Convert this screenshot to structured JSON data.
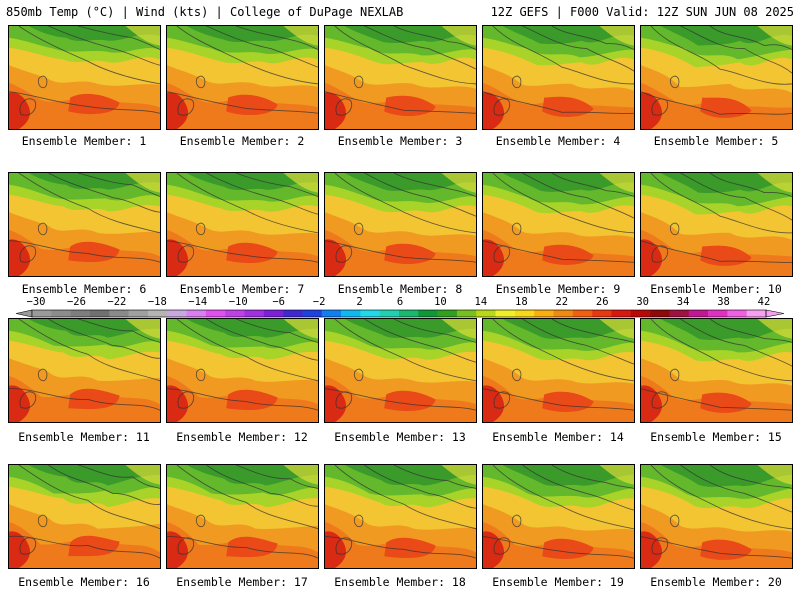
{
  "header": {
    "left": "850mb Temp (°C) | Wind (kts) | College of DuPage NEXLAB",
    "right": "12Z GEFS | F000 Valid: 12Z SUN JUN 08 2025"
  },
  "members": [
    "Ensemble Member: 1",
    "Ensemble Member: 2",
    "Ensemble Member: 3",
    "Ensemble Member: 4",
    "Ensemble Member: 5",
    "Ensemble Member: 6",
    "Ensemble Member: 7",
    "Ensemble Member: 8",
    "Ensemble Member: 9",
    "Ensemble Member: 10",
    "Ensemble Member: 11",
    "Ensemble Member: 12",
    "Ensemble Member: 13",
    "Ensemble Member: 14",
    "Ensemble Member: 15",
    "Ensemble Member: 16",
    "Ensemble Member: 17",
    "Ensemble Member: 18",
    "Ensemble Member: 19",
    "Ensemble Member: 20"
  ],
  "colorbar": {
    "labels": [
      "−30",
      "−26",
      "−22",
      "−18",
      "−14",
      "−10",
      "−6",
      "−2",
      "2",
      "6",
      "10",
      "14",
      "18",
      "22",
      "26",
      "30",
      "34",
      "38",
      "42"
    ],
    "colors": [
      "#9a9a9a",
      "#8c8c8c",
      "#7e7e7e",
      "#707070",
      "#8a8a8a",
      "#a0a0a0",
      "#b4b4b4",
      "#c8a8e0",
      "#d880f0",
      "#e050f0",
      "#c040e8",
      "#a030e0",
      "#7a20d8",
      "#4028d0",
      "#2040e0",
      "#1080f0",
      "#10b8f0",
      "#20d8e8",
      "#20d0b0",
      "#18b870",
      "#109838",
      "#30a020",
      "#78c020",
      "#b8d818",
      "#f0f028",
      "#f8d818",
      "#f8b010",
      "#f08a10",
      "#f06010",
      "#e83810",
      "#d81810",
      "#b80808",
      "#900808",
      "#a01040",
      "#c01890",
      "#e030c0",
      "#f060e0",
      "#f8a0f0"
    ],
    "palette": {
      "greenDark": "#3a9a2a",
      "green": "#64b82c",
      "greenLight": "#a8d42a",
      "yellow": "#f3e53a",
      "gold": "#f3c532",
      "orange": "#f09a22",
      "orangeDark": "#ef7a1c",
      "red": "#e94a18",
      "redDark": "#d92a14"
    }
  }
}
